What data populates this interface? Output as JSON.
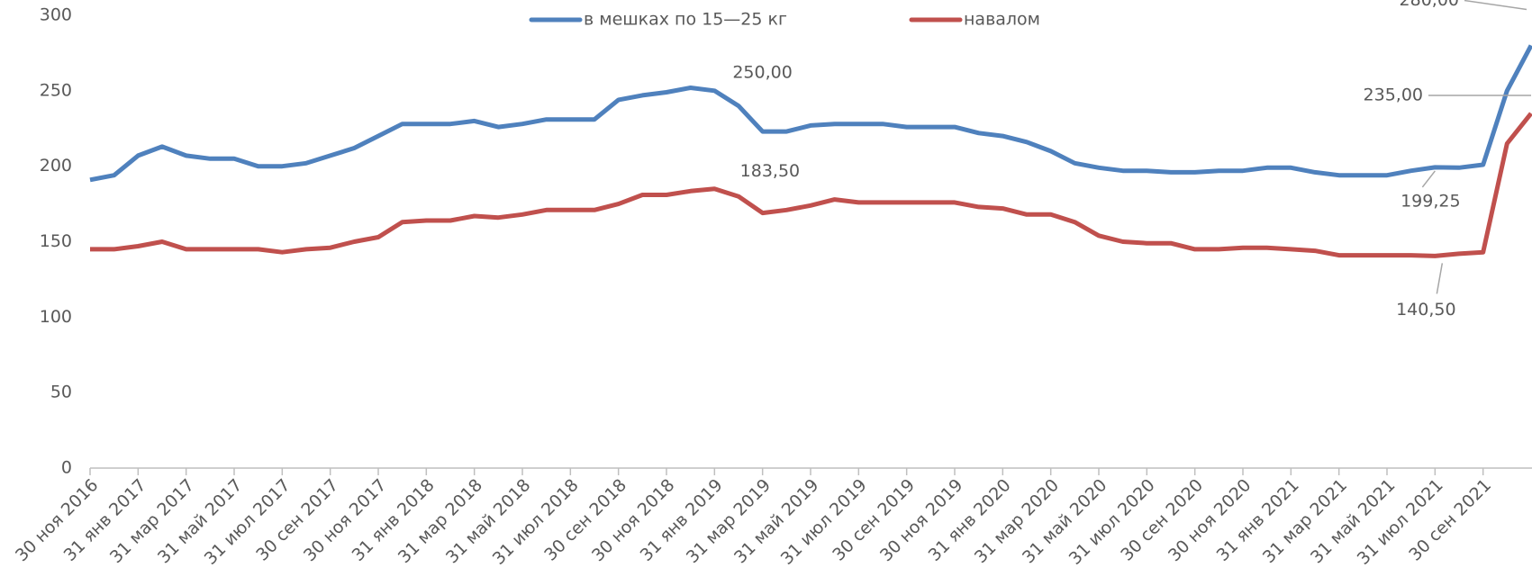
{
  "chart_data": {
    "type": "line",
    "categories": [
      "30 ноя 2016",
      null,
      "31 янв 2017",
      null,
      "31 мар 2017",
      null,
      "31 май 2017",
      null,
      "31 июл 2017",
      null,
      "30 сен 2017",
      null,
      "30 ноя 2017",
      null,
      "31 янв 2018",
      null,
      "31 мар 2018",
      null,
      "31 май 2018",
      null,
      "31 июл 2018",
      null,
      "30 сен 2018",
      null,
      "30 ноя 2018",
      null,
      "31 янв 2019",
      null,
      "31 мар 2019",
      null,
      "31 май 2019",
      null,
      "31 июл 2019",
      null,
      "30 сен 2019",
      null,
      "30 ноя 2019",
      null,
      "31 янв 2020",
      null,
      "31 мар 2020",
      null,
      "31 май 2020",
      null,
      "31 июл 2020",
      null,
      "30 сен 2020",
      null,
      "30 ноя 2020",
      null,
      "31 янв 2021",
      null,
      "31 мар 2021",
      null,
      "31 май 2021",
      null,
      "31 июл 2021",
      null,
      "30 сен 2021",
      null,
      null
    ],
    "series": [
      {
        "name": "в мешках по 15—25 кг",
        "color": "#4f81bd",
        "values": [
          191,
          194,
          207,
          213,
          207,
          205,
          205,
          200,
          200,
          202,
          207,
          212,
          220,
          228,
          228,
          228,
          230,
          226,
          228,
          231,
          231,
          231,
          244,
          247,
          249,
          252,
          250,
          240,
          223,
          223,
          227,
          228,
          228,
          228,
          226,
          226,
          226,
          222,
          220,
          216,
          210,
          202,
          199,
          197,
          197,
          196,
          196,
          197,
          197,
          199,
          199,
          196,
          194,
          194,
          194,
          197,
          199.25,
          199,
          201,
          250,
          280
        ],
        "value_labels": [
          null,
          null,
          null,
          null,
          null,
          null,
          null,
          null,
          null,
          null,
          null,
          null,
          null,
          null,
          null,
          null,
          null,
          null,
          null,
          null,
          null,
          null,
          null,
          null,
          null,
          null,
          "250,00",
          null,
          null,
          null,
          null,
          null,
          null,
          null,
          null,
          null,
          null,
          null,
          null,
          null,
          null,
          null,
          null,
          null,
          null,
          null,
          null,
          null,
          null,
          null,
          null,
          null,
          null,
          null,
          null,
          null,
          "199,25",
          null,
          null,
          null,
          "280,00"
        ]
      },
      {
        "name": "навалом",
        "color": "#c0504d",
        "values": [
          145,
          145,
          147,
          150,
          145,
          145,
          145,
          145,
          143,
          145,
          146,
          150,
          153,
          163,
          164,
          164,
          167,
          166,
          168,
          171,
          171,
          171,
          175,
          181,
          181,
          183.5,
          185,
          180,
          169,
          171,
          174,
          178,
          176,
          176,
          176,
          176,
          176,
          173,
          172,
          168,
          168,
          163,
          154,
          150,
          149,
          149,
          145,
          145,
          146,
          146,
          145,
          144,
          141,
          141,
          141,
          141,
          140.5,
          142,
          143,
          215,
          235
        ],
        "value_labels": [
          null,
          null,
          null,
          null,
          null,
          null,
          null,
          null,
          null,
          null,
          null,
          null,
          null,
          null,
          null,
          null,
          null,
          null,
          null,
          null,
          null,
          null,
          null,
          null,
          null,
          "183,50",
          null,
          null,
          null,
          null,
          null,
          null,
          null,
          null,
          null,
          null,
          null,
          null,
          null,
          null,
          null,
          null,
          null,
          null,
          null,
          null,
          null,
          null,
          null,
          null,
          null,
          null,
          null,
          null,
          null,
          null,
          "140,50",
          null,
          null,
          null,
          "235,00"
        ]
      }
    ],
    "ylim": [
      0,
      300
    ],
    "yticks": [
      0,
      50,
      100,
      150,
      200,
      250,
      300
    ],
    "legend": "top",
    "grid": false
  }
}
